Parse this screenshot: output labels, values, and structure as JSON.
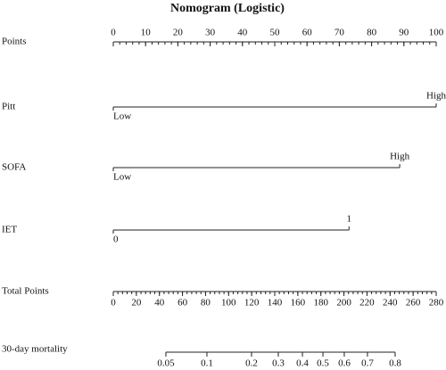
{
  "chart_data": {
    "type": "nomogram",
    "title": "Nomogram (Logistic)",
    "points_axis": {
      "label": "Points",
      "lim": [
        0,
        100
      ],
      "ticks": [
        0,
        10,
        20,
        30,
        40,
        50,
        60,
        70,
        80,
        90,
        100
      ],
      "minor_step": 2
    },
    "variables": [
      {
        "label": "Pitt",
        "levels": [
          "Low",
          "High"
        ],
        "points": [
          0,
          100
        ]
      },
      {
        "label": "SOFA",
        "levels": [
          "Low",
          "High"
        ],
        "points": [
          0,
          88.7
        ]
      },
      {
        "label": "IET",
        "levels": [
          "0",
          "1"
        ],
        "points": [
          0,
          73
        ]
      }
    ],
    "total_axis": {
      "label": "Total Points",
      "lim": [
        0,
        280
      ],
      "ticks": [
        0,
        20,
        40,
        60,
        80,
        100,
        120,
        140,
        160,
        180,
        200,
        220,
        240,
        260,
        280
      ],
      "minor_step": 4
    },
    "outcome_axis": {
      "label": "30-day mortality",
      "ticks": [
        0.05,
        0.1,
        0.2,
        0.3,
        0.4,
        0.5,
        0.6,
        0.7,
        0.8
      ],
      "positions": [
        45.6,
        81.2,
        119.9,
        143.1,
        164,
        181.8,
        200.3,
        220.4,
        244.4
      ]
    }
  }
}
